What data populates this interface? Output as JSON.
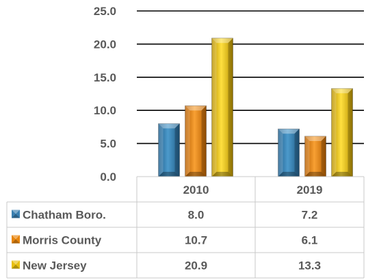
{
  "chart_data": {
    "type": "bar",
    "categories": [
      "2010",
      "2019"
    ],
    "series": [
      {
        "name": "Chatham Boro.",
        "values": [
          8.0,
          7.2
        ],
        "color": "#3A7FB0",
        "display": [
          "8.0",
          "7.2"
        ]
      },
      {
        "name": "Morris County",
        "values": [
          10.7,
          6.1
        ],
        "color": "#E8860E",
        "display": [
          "10.7",
          "6.1"
        ]
      },
      {
        "name": "New Jersey",
        "values": [
          20.9,
          13.3
        ],
        "color": "#E8C010",
        "display": [
          "20.9",
          "13.3"
        ]
      }
    ],
    "ylim": [
      0,
      25
    ],
    "yticks": [
      "0.0",
      "5.0",
      "10.0",
      "15.0",
      "20.0",
      "25.0"
    ],
    "ytick_values": [
      0,
      5,
      10,
      15,
      20,
      25
    ],
    "grid": true,
    "legend": "data-table"
  }
}
